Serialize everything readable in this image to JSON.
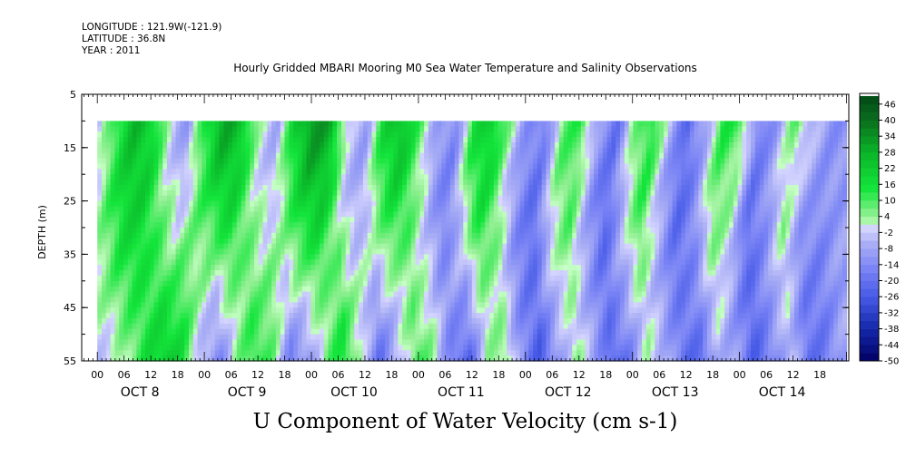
{
  "meta": {
    "longitude": "LONGITUDE : 121.9W(-121.9)",
    "latitude": "LATITUDE : 36.8N",
    "year": "YEAR : 2011"
  },
  "chart_data": {
    "type": "heatmap",
    "title": "Hourly Gridded MBARI Mooring M0 Sea Water Temperature and Salinity Observations",
    "bottom_title": "U Component of Water Velocity (cm s-1)",
    "ylabel": "DEPTH (m)",
    "xlabel": "",
    "y_axis": {
      "range": [
        5,
        55
      ],
      "inverted": true,
      "ticks": [
        5,
        15,
        25,
        35,
        45,
        55
      ],
      "data_top": 10
    },
    "x_axis": {
      "hour_ticks": [
        "00",
        "06",
        "12",
        "18"
      ],
      "day_labels": [
        "OCT  8",
        "OCT  9",
        "OCT 10",
        "OCT 11",
        "OCT 12",
        "OCT 13",
        "OCT 14"
      ]
    },
    "colorbar": {
      "range": [
        -50,
        50
      ],
      "step": 3,
      "labels": [
        "46",
        "40",
        "34",
        "28",
        "22",
        "16",
        "10",
        "4",
        "-2",
        "-8",
        "-14",
        "-20",
        "-26",
        "-32",
        "-38",
        "-44",
        "-50"
      ]
    },
    "pattern": {
      "description_free_hour_samples": true,
      "times_hours": [
        0,
        4,
        8,
        12,
        16,
        20,
        24,
        28,
        32,
        36,
        40,
        44,
        48,
        52,
        56,
        60,
        64,
        68,
        72,
        76,
        80,
        84,
        88,
        92,
        96,
        100,
        104,
        108,
        112,
        116,
        120,
        124,
        128,
        132,
        136,
        140,
        144,
        148,
        152,
        156,
        160,
        164
      ],
      "surface_values": [
        -4,
        14,
        26,
        20,
        -2,
        -10,
        16,
        30,
        24,
        0,
        -6,
        20,
        34,
        28,
        -4,
        -8,
        18,
        26,
        8,
        -10,
        -14,
        14,
        22,
        4,
        -12,
        -18,
        8,
        12,
        -10,
        -20,
        4,
        16,
        -6,
        -22,
        -8,
        14,
        10,
        -18,
        -10,
        8,
        -4,
        -12
      ],
      "deep_values": [
        -2,
        6,
        16,
        22,
        14,
        -6,
        -14,
        4,
        14,
        6,
        -16,
        -10,
        6,
        16,
        -2,
        -20,
        -6,
        10,
        4,
        -18,
        -22,
        2,
        6,
        -14,
        -26,
        -10,
        4,
        -8,
        -24,
        -16,
        2,
        -6,
        -20,
        -22,
        -4,
        -10,
        -24,
        -16,
        -2,
        -20,
        -18,
        -8
      ]
    }
  }
}
